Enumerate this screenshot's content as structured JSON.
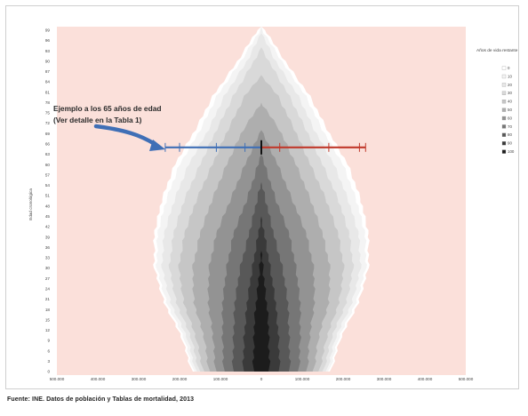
{
  "chart_data": {
    "type": "area",
    "ylabel": "Edad cronológica",
    "background_color": "#fbe0da",
    "x_tick_labels": [
      "500.000",
      "400.000",
      "300.000",
      "200.000",
      "100.000",
      "0",
      "100.000",
      "200.000",
      "300.000",
      "400.000",
      "500.000"
    ],
    "x_tick_values": [
      -500000,
      -400000,
      -300000,
      -200000,
      -100000,
      0,
      100000,
      200000,
      300000,
      400000,
      500000
    ],
    "xlim": [
      -500000,
      500000
    ],
    "y_tick_labels": [
      "0",
      "3",
      "6",
      "9",
      "12",
      "15",
      "18",
      "21",
      "24",
      "27",
      "30",
      "33",
      "36",
      "39",
      "42",
      "45",
      "48",
      "51",
      "54",
      "57",
      "60",
      "63",
      "66",
      "69",
      "72",
      "75",
      "78",
      "81",
      "84",
      "87",
      "90",
      "93",
      "96",
      "99"
    ],
    "ylim": [
      0,
      100
    ],
    "legend_title": "Años de vida restante",
    "legend_position": "right",
    "bands": [
      {
        "label": "100",
        "color": "#1c1c1c",
        "h": [
          [
            0,
            20000
          ],
          [
            15,
            17000
          ],
          [
            25,
            8000
          ],
          [
            35,
            0
          ],
          [
            100,
            0
          ]
        ]
      },
      {
        "label": "90",
        "color": "#3a3a3a",
        "h": [
          [
            0,
            45000
          ],
          [
            10,
            42000
          ],
          [
            20,
            35000
          ],
          [
            30,
            22000
          ],
          [
            45,
            0
          ],
          [
            100,
            0
          ]
        ]
      },
      {
        "label": "80",
        "color": "#585858",
        "h": [
          [
            0,
            70000
          ],
          [
            10,
            68000
          ],
          [
            20,
            65000
          ],
          [
            30,
            52000
          ],
          [
            40,
            30000
          ],
          [
            55,
            0
          ],
          [
            100,
            0
          ]
        ]
      },
      {
        "label": "70",
        "color": "#767676",
        "h": [
          [
            0,
            92000
          ],
          [
            10,
            95000
          ],
          [
            20,
            95000
          ],
          [
            30,
            85000
          ],
          [
            40,
            68000
          ],
          [
            50,
            35000
          ],
          [
            63,
            0
          ],
          [
            100,
            0
          ]
        ]
      },
      {
        "label": "60",
        "color": "#939393",
        "h": [
          [
            0,
            112000
          ],
          [
            10,
            118000
          ],
          [
            20,
            130000
          ],
          [
            30,
            128000
          ],
          [
            40,
            110000
          ],
          [
            50,
            75000
          ],
          [
            60,
            40000
          ],
          [
            70,
            0
          ],
          [
            100,
            0
          ]
        ]
      },
      {
        "label": "50",
        "color": "#aeaeae",
        "h": [
          [
            0,
            128000
          ],
          [
            10,
            140000
          ],
          [
            20,
            165000
          ],
          [
            30,
            168000
          ],
          [
            40,
            150000
          ],
          [
            50,
            120000
          ],
          [
            60,
            85000
          ],
          [
            70,
            45000
          ],
          [
            78,
            0
          ],
          [
            100,
            0
          ]
        ]
      },
      {
        "label": "40",
        "color": "#c6c6c6",
        "h": [
          [
            0,
            142000
          ],
          [
            10,
            160000
          ],
          [
            20,
            190000
          ],
          [
            30,
            202000
          ],
          [
            40,
            188000
          ],
          [
            50,
            158000
          ],
          [
            60,
            120000
          ],
          [
            70,
            82000
          ],
          [
            80,
            40000
          ],
          [
            86,
            0
          ],
          [
            100,
            0
          ]
        ]
      },
      {
        "label": "30",
        "color": "#d9d9d9",
        "h": [
          [
            0,
            152000
          ],
          [
            10,
            172000
          ],
          [
            20,
            208000
          ],
          [
            30,
            225000
          ],
          [
            40,
            215000
          ],
          [
            50,
            188000
          ],
          [
            60,
            150000
          ],
          [
            70,
            110000
          ],
          [
            80,
            68000
          ],
          [
            90,
            18000
          ],
          [
            94,
            0
          ],
          [
            100,
            0
          ]
        ]
      },
      {
        "label": "20",
        "color": "#e8e8e8",
        "h": [
          [
            0,
            160000
          ],
          [
            10,
            182000
          ],
          [
            20,
            222000
          ],
          [
            30,
            243000
          ],
          [
            40,
            238000
          ],
          [
            50,
            212000
          ],
          [
            60,
            178000
          ],
          [
            70,
            130000
          ],
          [
            80,
            90000
          ],
          [
            90,
            35000
          ],
          [
            97,
            5000
          ],
          [
            100,
            0
          ]
        ]
      },
      {
        "label": "10",
        "color": "#f4f4f4",
        "h": [
          [
            0,
            166000
          ],
          [
            10,
            190000
          ],
          [
            20,
            232000
          ],
          [
            30,
            256000
          ],
          [
            40,
            254000
          ],
          [
            50,
            232000
          ],
          [
            60,
            200000
          ],
          [
            70,
            150000
          ],
          [
            80,
            108000
          ],
          [
            90,
            50000
          ],
          [
            98,
            8000
          ],
          [
            100,
            0
          ]
        ]
      },
      {
        "label": "0",
        "color": "#ffffff",
        "h": [
          [
            0,
            170000
          ],
          [
            10,
            195000
          ],
          [
            20,
            238000
          ],
          [
            30,
            262000
          ],
          [
            40,
            262000
          ],
          [
            50,
            243000
          ],
          [
            60,
            212000
          ],
          [
            70,
            162000
          ],
          [
            80,
            118000
          ],
          [
            90,
            58000
          ],
          [
            99,
            10000
          ],
          [
            100,
            0
          ]
        ]
      }
    ],
    "annotation": {
      "line1": "Ejemplo a los 65 años de edad",
      "line2": "(Ver detalle en la Tabla 1)",
      "age": 65,
      "left_ticks": [
        -235000,
        -200000,
        -110000,
        -40000
      ],
      "right_ticks": [
        45000,
        165000,
        240000,
        255000
      ],
      "left_color": "#3f6fb6",
      "right_color": "#c0392b"
    }
  },
  "source_note": "Fuente: INE. Datos de población y Tablas de mortalidad, 2013"
}
